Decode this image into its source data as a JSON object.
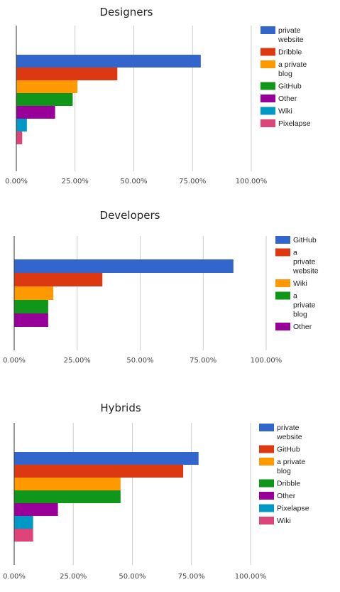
{
  "chart_data": [
    {
      "type": "bar",
      "orientation": "horizontal",
      "title": "Designers",
      "categories": [
        "private website",
        "Dribble",
        "a private blog",
        "GitHub",
        "Other",
        "Wiki",
        "Pixelapse"
      ],
      "values": [
        78.5,
        43,
        26,
        24,
        16.5,
        4.5,
        2.5
      ],
      "colors": [
        "#3366cc",
        "#dc3912",
        "#ff9900",
        "#109618",
        "#990099",
        "#0099c6",
        "#dd4477"
      ],
      "legend_labels": [
        [
          "private",
          "website"
        ],
        [
          "Dribble"
        ],
        [
          "a private",
          "blog"
        ],
        [
          "GitHub"
        ],
        [
          "Other"
        ],
        [
          "Wiki"
        ],
        [
          "Pixelapse"
        ]
      ],
      "xlim": [
        0,
        100
      ],
      "ticks": [
        "0.00%",
        "25.00%",
        "50.00%",
        "75.00%",
        "100.00%"
      ],
      "grid": true,
      "legend": "right"
    },
    {
      "type": "bar",
      "orientation": "horizontal",
      "title": "Developers",
      "categories": [
        "GitHub",
        "a private website",
        "Wiki",
        "a private blog",
        "Other"
      ],
      "values": [
        87,
        35,
        15.5,
        13.5,
        13.5
      ],
      "colors": [
        "#3366cc",
        "#dc3912",
        "#ff9900",
        "#109618",
        "#990099"
      ],
      "legend_labels": [
        [
          "GitHub"
        ],
        [
          "a",
          "private",
          "website"
        ],
        [
          "Wiki"
        ],
        [
          "a",
          "private",
          "blog"
        ],
        [
          "Other"
        ]
      ],
      "xlim": [
        0,
        100
      ],
      "ticks": [
        "0.00%",
        "25.00%",
        "50.00%",
        "75.00%",
        "100.00%"
      ],
      "grid": true,
      "legend": "right"
    },
    {
      "type": "bar",
      "orientation": "horizontal",
      "title": "Hybrids",
      "categories": [
        "private website",
        "GitHub",
        "a private blog",
        "Dribble",
        "Other",
        "Pixelapse",
        "Wiki"
      ],
      "values": [
        78,
        71.5,
        45,
        45,
        18.5,
        8,
        8
      ],
      "colors": [
        "#3366cc",
        "#dc3912",
        "#ff9900",
        "#109618",
        "#990099",
        "#0099c6",
        "#dd4477"
      ],
      "legend_labels": [
        [
          "private",
          "website"
        ],
        [
          "GitHub"
        ],
        [
          "a private",
          "blog"
        ],
        [
          "Dribble"
        ],
        [
          "Other"
        ],
        [
          "Pixelapse"
        ],
        [
          "Wiki"
        ]
      ],
      "xlim": [
        0,
        100
      ],
      "ticks": [
        "0.00%",
        "25.00%",
        "50.00%",
        "75.00%",
        "100.00%"
      ],
      "grid": true,
      "legend": "right"
    }
  ]
}
